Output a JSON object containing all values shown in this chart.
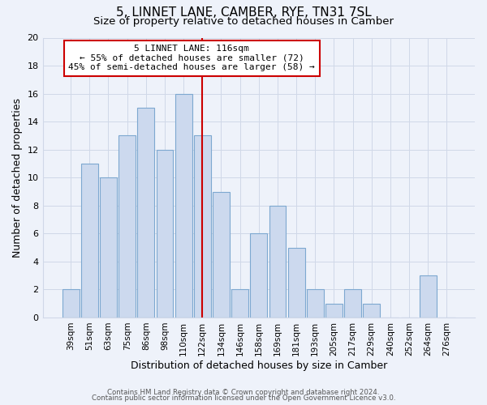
{
  "title": "5, LINNET LANE, CAMBER, RYE, TN31 7SL",
  "subtitle": "Size of property relative to detached houses in Camber",
  "xlabel": "Distribution of detached houses by size in Camber",
  "ylabel": "Number of detached properties",
  "bar_labels": [
    "39sqm",
    "51sqm",
    "63sqm",
    "75sqm",
    "86sqm",
    "98sqm",
    "110sqm",
    "122sqm",
    "134sqm",
    "146sqm",
    "158sqm",
    "169sqm",
    "181sqm",
    "193sqm",
    "205sqm",
    "217sqm",
    "229sqm",
    "240sqm",
    "252sqm",
    "264sqm",
    "276sqm"
  ],
  "bar_values": [
    2,
    11,
    10,
    13,
    15,
    12,
    16,
    13,
    9,
    2,
    6,
    8,
    5,
    2,
    1,
    2,
    1,
    0,
    0,
    3,
    0
  ],
  "bar_color": "#ccd9ee",
  "bar_edge_color": "#7da8d0",
  "vline_color": "#cc0000",
  "annotation_title": "5 LINNET LANE: 116sqm",
  "annotation_line1": "← 55% of detached houses are smaller (72)",
  "annotation_line2": "45% of semi-detached houses are larger (58) →",
  "annotation_box_color": "#ffffff",
  "annotation_box_edge": "#cc0000",
  "ylim": [
    0,
    20
  ],
  "yticks": [
    0,
    2,
    4,
    6,
    8,
    10,
    12,
    14,
    16,
    18,
    20
  ],
  "footer1": "Contains HM Land Registry data © Crown copyright and database right 2024.",
  "footer2": "Contains public sector information licensed under the Open Government Licence v3.0.",
  "bg_color": "#eef2fa",
  "grid_color": "#d0d8e8",
  "title_fontsize": 11,
  "subtitle_fontsize": 9.5
}
